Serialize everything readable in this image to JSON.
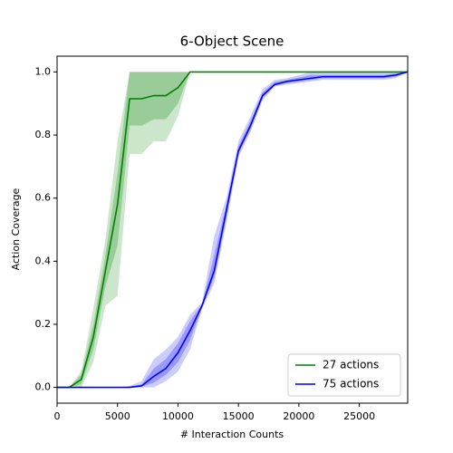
{
  "chart_data": {
    "type": "line",
    "title": "6-Object Scene",
    "xlabel": "# Interaction Counts",
    "ylabel": "Action Coverage",
    "x": [
      0,
      1000,
      2000,
      3000,
      4000,
      5000,
      6000,
      7000,
      8000,
      9000,
      10000,
      11000,
      12000,
      13000,
      14000,
      15000,
      16000,
      17000,
      18000,
      19000,
      20000,
      21000,
      22000,
      23000,
      24000,
      25000,
      26000,
      27000,
      28000,
      29000
    ],
    "xlim": [
      0,
      29000
    ],
    "xticks": [
      0,
      5000,
      10000,
      15000,
      20000,
      25000
    ],
    "ylim": [
      -0.05,
      1.05
    ],
    "yticks": [
      {
        "value": 0,
        "label": "0.0"
      },
      {
        "value": 0.2,
        "label": "0.2"
      },
      {
        "value": 0.4,
        "label": "0.4"
      },
      {
        "value": 0.6,
        "label": "0.6"
      },
      {
        "value": 0.8,
        "label": "0.8"
      },
      {
        "value": 1,
        "label": "1.0"
      }
    ],
    "legend": "lower right",
    "series": [
      {
        "name": "27 actions",
        "color": "#008000",
        "values": [
          0,
          0,
          0.025,
          0.16,
          0.37,
          0.58,
          0.915,
          0.915,
          0.925,
          0.925,
          0.95,
          1,
          1,
          1,
          1,
          1,
          1,
          1,
          1,
          1,
          1,
          1,
          1,
          1,
          1,
          1,
          1,
          1,
          1,
          1
        ],
        "band_outer": {
          "low": [
            0,
            0,
            0,
            0.08,
            0.26,
            0.29,
            0.74,
            0.74,
            0.78,
            0.78,
            0.86,
            1,
            1,
            1,
            1,
            1,
            1,
            1,
            1,
            1,
            1,
            1,
            1,
            1,
            1,
            1,
            1,
            1,
            1,
            1
          ],
          "high": [
            0,
            0,
            0.05,
            0.25,
            0.47,
            0.78,
            1,
            1,
            1,
            1,
            1,
            1,
            1,
            1,
            1,
            1,
            1,
            1,
            1,
            1,
            1,
            1,
            1,
            1,
            1,
            1,
            1,
            1,
            1,
            1
          ]
        },
        "band_inner": {
          "low": [
            0,
            0,
            0.01,
            0.12,
            0.32,
            0.45,
            0.83,
            0.83,
            0.85,
            0.85,
            0.9,
            1,
            1,
            1,
            1,
            1,
            1,
            1,
            1,
            1,
            1,
            1,
            1,
            1,
            1,
            1,
            1,
            1,
            1,
            1
          ],
          "high": [
            0,
            0,
            0.04,
            0.2,
            0.42,
            0.68,
            1,
            1,
            1,
            1,
            1,
            1,
            1,
            1,
            1,
            1,
            1,
            1,
            1,
            1,
            1,
            1,
            1,
            1,
            1,
            1,
            1,
            1,
            1,
            1
          ]
        }
      },
      {
        "name": "75 actions",
        "color": "#0000ff",
        "values": [
          0,
          0,
          0,
          0,
          0,
          0,
          0,
          0.005,
          0.035,
          0.06,
          0.11,
          0.18,
          0.26,
          0.37,
          0.56,
          0.75,
          0.83,
          0.925,
          0.96,
          0.97,
          0.975,
          0.98,
          0.985,
          0.985,
          0.985,
          0.985,
          0.985,
          0.985,
          0.99,
          1
        ],
        "band_outer": {
          "low": [
            0,
            0,
            0,
            0,
            0,
            0,
            0,
            0,
            0,
            0.02,
            0.05,
            0.12,
            0.25,
            0.33,
            0.52,
            0.73,
            0.81,
            0.91,
            0.955,
            0.96,
            0.965,
            0.97,
            0.975,
            0.975,
            0.975,
            0.975,
            0.975,
            0.975,
            0.98,
            1
          ],
          "high": [
            0,
            0,
            0,
            0,
            0,
            0,
            0.005,
            0.02,
            0.09,
            0.12,
            0.16,
            0.23,
            0.27,
            0.48,
            0.6,
            0.78,
            0.86,
            0.945,
            0.975,
            0.98,
            0.99,
            1,
            1,
            1,
            1,
            1,
            1,
            1,
            1,
            1
          ]
        },
        "band_inner": {
          "low": [
            0,
            0,
            0,
            0,
            0,
            0,
            0,
            0.002,
            0.015,
            0.04,
            0.08,
            0.15,
            0.255,
            0.35,
            0.54,
            0.74,
            0.82,
            0.92,
            0.957,
            0.965,
            0.97,
            0.975,
            0.98,
            0.98,
            0.98,
            0.98,
            0.98,
            0.98,
            0.985,
            1
          ],
          "high": [
            0,
            0,
            0,
            0,
            0,
            0,
            0.002,
            0.01,
            0.06,
            0.09,
            0.14,
            0.21,
            0.265,
            0.42,
            0.58,
            0.765,
            0.845,
            0.935,
            0.968,
            0.975,
            0.982,
            0.99,
            0.99,
            0.99,
            0.99,
            0.99,
            0.99,
            0.99,
            0.995,
            1
          ]
        }
      }
    ]
  }
}
